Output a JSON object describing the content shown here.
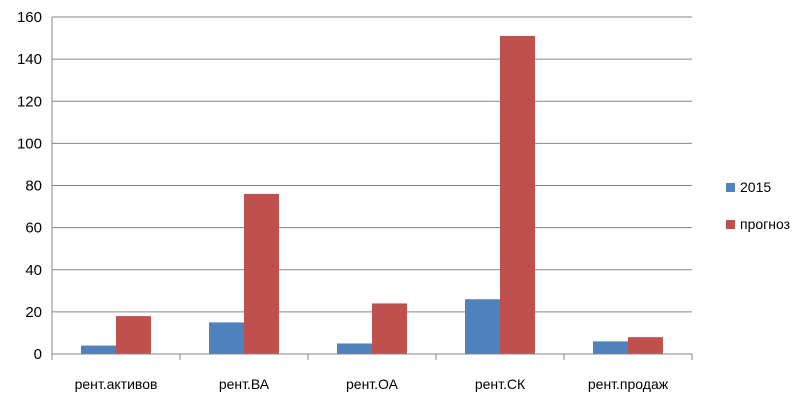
{
  "chart_data": {
    "type": "bar",
    "categories": [
      "рент.активов",
      "рент.ВА",
      "рент.ОА",
      "рент.СК",
      "рент.продаж"
    ],
    "series": [
      {
        "name": "2015",
        "values": [
          4,
          15,
          5,
          26,
          6
        ],
        "color": "#4f81bd"
      },
      {
        "name": "прогноз",
        "values": [
          18,
          76,
          24,
          151,
          8
        ],
        "color": "#c0504d"
      }
    ],
    "ylim": [
      0,
      160
    ],
    "yticks": [
      0,
      20,
      40,
      60,
      80,
      100,
      120,
      140,
      160
    ],
    "grid": true,
    "legend": "right"
  }
}
